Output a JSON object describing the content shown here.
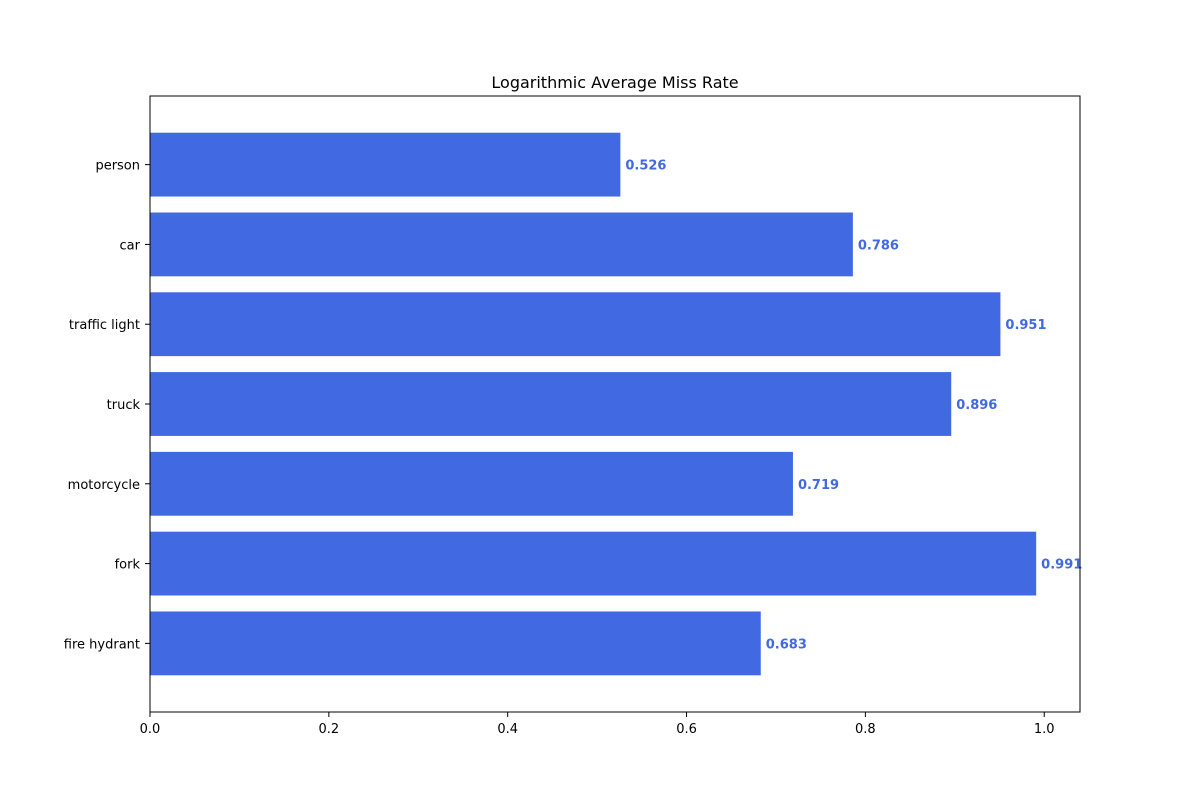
{
  "chart_data": {
    "type": "bar",
    "orientation": "horizontal",
    "title": "Logarithmic Average Miss Rate",
    "xlabel": "",
    "ylabel": "",
    "categories": [
      "person",
      "car",
      "traffic light",
      "truck",
      "motorcycle",
      "fork",
      "fire hydrant"
    ],
    "values": [
      0.526,
      0.786,
      0.951,
      0.896,
      0.719,
      0.991,
      0.683
    ],
    "value_labels": [
      "0.526",
      "0.786",
      "0.951",
      "0.896",
      "0.719",
      "0.991",
      "0.683"
    ],
    "xlim": [
      0,
      1.04
    ],
    "xticks": [
      0.0,
      0.2,
      0.4,
      0.6,
      0.8,
      1.0
    ],
    "xtick_labels": [
      "0.0",
      "0.2",
      "0.4",
      "0.6",
      "0.8",
      "1.0"
    ],
    "bar_color": "#4169e1",
    "label_color": "#4169e1",
    "grid": false,
    "legend": "none"
  }
}
